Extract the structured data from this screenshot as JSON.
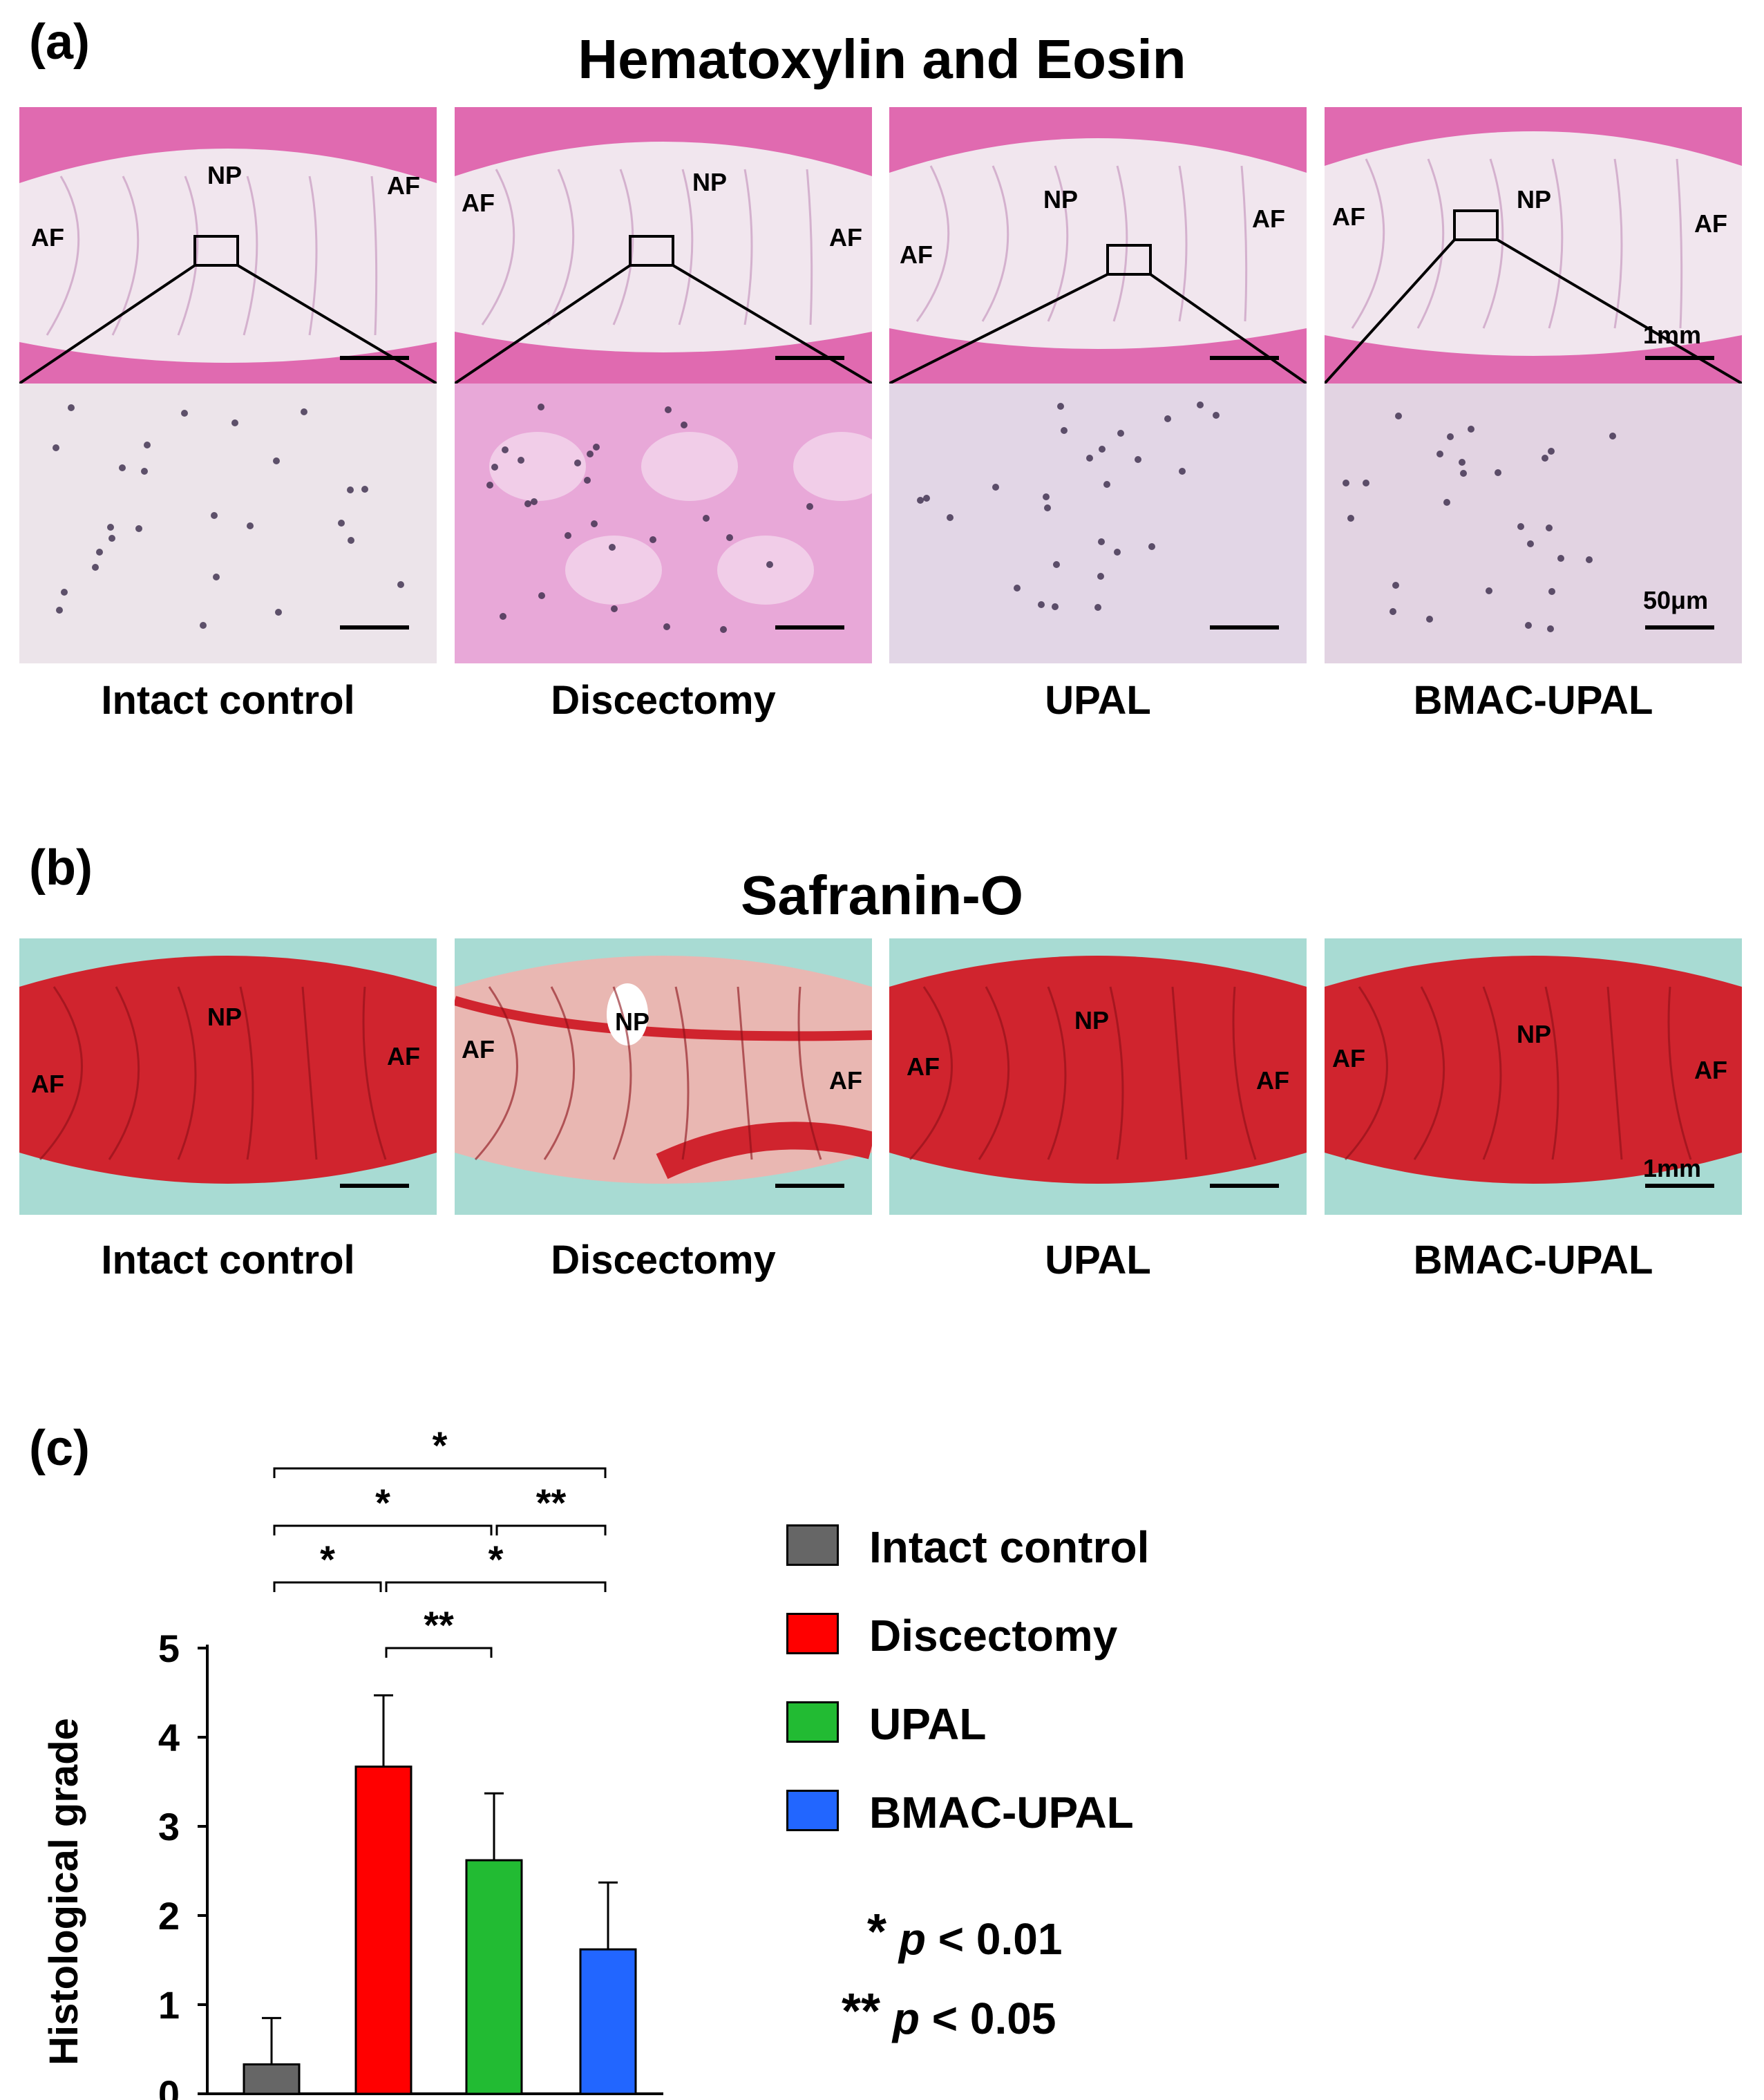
{
  "panels": {
    "a": {
      "label": "(a)",
      "title": "Hematoxylin and Eosin",
      "np": "NP",
      "af": "AF",
      "scale_top": "1mm",
      "scale_bottom": "50μm",
      "captions": [
        "Intact control",
        "Discectomy",
        "UPAL",
        "BMAC-UPAL"
      ]
    },
    "b": {
      "label": "(b)",
      "title": "Safranin-O",
      "np": "NP",
      "af": "AF",
      "scale": "1mm",
      "captions": [
        "Intact control",
        "Discectomy",
        "UPAL",
        "BMAC-UPAL"
      ]
    },
    "c": {
      "label": "(c)",
      "significance": [
        "*",
        "*",
        "**",
        "*",
        "*",
        "**"
      ],
      "notes": [
        {
          "stars": "*",
          "p": "p",
          "text": " < 0.01"
        },
        {
          "stars": "**",
          "p": "p",
          "text": " < 0.05"
        }
      ]
    }
  },
  "colors": {
    "he_pink": "#e06ab0",
    "he_light": "#f1e6ee",
    "saf_red": "#d0242e",
    "saf_teal": "#a8dbd3",
    "intact": "#666666",
    "discectomy": "#ff0000",
    "upal": "#22bb33",
    "bmac": "#2266ff"
  },
  "chart_data": {
    "type": "bar",
    "categories": [
      "Intact control",
      "Discectomy",
      "UPAL",
      "BMAC-UPAL"
    ],
    "values": [
      0.33,
      3.67,
      2.62,
      1.62
    ],
    "errors": [
      0.52,
      0.8,
      0.75,
      0.75
    ],
    "ylabel": "Histological grade",
    "ylim": [
      0,
      5
    ],
    "yticks": [
      0,
      1,
      2,
      3,
      4,
      5
    ],
    "colors": [
      "#666666",
      "#ff0000",
      "#22bb33",
      "#2266ff"
    ],
    "legend": [
      "Intact control",
      "Discectomy",
      "UPAL",
      "BMAC-UPAL"
    ],
    "legend_position": "right"
  }
}
